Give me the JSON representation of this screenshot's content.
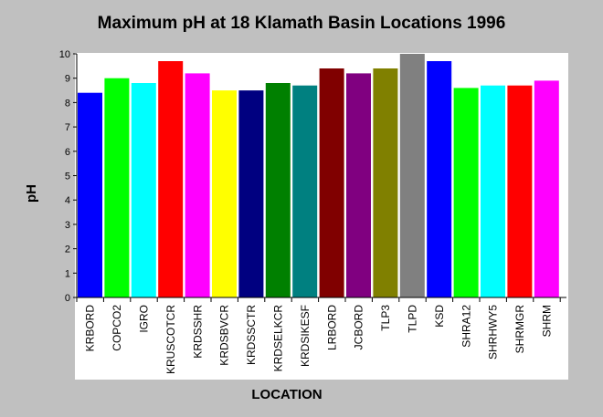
{
  "chart_data": {
    "type": "bar",
    "title": "Maximum pH at 18 Klamath Basin Locations 1996",
    "xlabel": "LOCATION",
    "ylabel": "pH",
    "ylim": [
      0,
      10
    ],
    "yticks": [
      0,
      1,
      2,
      3,
      4,
      5,
      6,
      7,
      8,
      9,
      10
    ],
    "grid": false,
    "categories": [
      "KRBORD",
      "COPCO2",
      "IGRO",
      "KRUSCOTCR",
      "KRDSSHR",
      "KRDSBVCR",
      "KRDSSCTR",
      "KRDSELKCR",
      "KRDSIKESF",
      "LRBORD",
      "JCBORD",
      "TLP3",
      "TLPD",
      "KSD",
      "SHRA12",
      "SHRHWY5",
      "SHRMGR",
      "SHRM"
    ],
    "values": [
      8.4,
      9.0,
      8.8,
      9.7,
      9.2,
      8.5,
      8.5,
      8.8,
      8.7,
      9.4,
      9.2,
      9.4,
      10.0,
      9.7,
      8.6,
      8.7,
      8.7,
      8.9
    ],
    "colors": [
      "#0000ff",
      "#00ff00",
      "#00ffff",
      "#ff0000",
      "#ff00ff",
      "#ffff00",
      "#000080",
      "#008000",
      "#008080",
      "#800000",
      "#800080",
      "#808000",
      "#808080",
      "#0000ff",
      "#00ff00",
      "#00ffff",
      "#ff0000",
      "#ff00ff"
    ],
    "plot_background": "#ffffff",
    "page_background": "#c0c0c0"
  }
}
